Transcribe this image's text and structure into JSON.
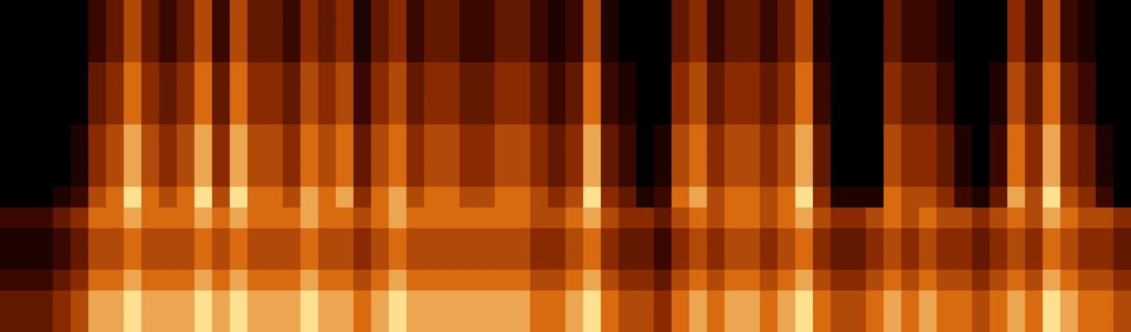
{
  "chart_data": {
    "type": "heatmap",
    "tick_labels": false,
    "grid": false,
    "color_range": [
      0,
      8
    ],
    "cells": [
      [
        0,
        0,
        0,
        0,
        0,
        2,
        3,
        5,
        3,
        2,
        3,
        5,
        2,
        5,
        3,
        3,
        2,
        4,
        3,
        4,
        1,
        3,
        4,
        2,
        3,
        3,
        2,
        2,
        3,
        3,
        2,
        1,
        2,
        5,
        1,
        0,
        0,
        0,
        3,
        4,
        2,
        3,
        3,
        2,
        3,
        5,
        1,
        0,
        0,
        0,
        3,
        2,
        2,
        1,
        0,
        0,
        0,
        4,
        2,
        5,
        2,
        1,
        0,
        0
      ],
      [
        0,
        0,
        0,
        0,
        0,
        2,
        3,
        5,
        3,
        2,
        3,
        5,
        2,
        5,
        3,
        3,
        2,
        4,
        3,
        4,
        1,
        3,
        4,
        2,
        3,
        3,
        2,
        2,
        3,
        3,
        2,
        1,
        2,
        5,
        1,
        0,
        0,
        0,
        3,
        4,
        2,
        3,
        3,
        2,
        3,
        5,
        1,
        0,
        0,
        0,
        3,
        2,
        2,
        1,
        0,
        0,
        0,
        4,
        2,
        5,
        2,
        1,
        0,
        0
      ],
      [
        0,
        0,
        0,
        0,
        0,
        2,
        3,
        5,
        3,
        2,
        3,
        5,
        2,
        5,
        3,
        3,
        2,
        4,
        3,
        4,
        1,
        3,
        4,
        2,
        3,
        3,
        2,
        2,
        3,
        3,
        2,
        1,
        2,
        5,
        1,
        0,
        0,
        0,
        3,
        4,
        2,
        3,
        3,
        2,
        3,
        5,
        1,
        0,
        0,
        0,
        3,
        2,
        2,
        1,
        0,
        0,
        0,
        4,
        2,
        5,
        2,
        1,
        0,
        0
      ],
      [
        0,
        0,
        0,
        0,
        0,
        3,
        4,
        6,
        4,
        3,
        4,
        6,
        3,
        6,
        4,
        4,
        3,
        5,
        4,
        5,
        2,
        4,
        5,
        3,
        4,
        4,
        3,
        3,
        4,
        4,
        3,
        2,
        3,
        6,
        2,
        1,
        0,
        0,
        4,
        5,
        3,
        4,
        4,
        3,
        4,
        6,
        2,
        0,
        0,
        0,
        4,
        3,
        3,
        2,
        0,
        0,
        1,
        5,
        3,
        6,
        3,
        2,
        0,
        0
      ],
      [
        0,
        0,
        0,
        0,
        0,
        3,
        4,
        6,
        4,
        3,
        4,
        6,
        3,
        6,
        4,
        4,
        3,
        5,
        4,
        5,
        2,
        4,
        5,
        3,
        4,
        4,
        3,
        3,
        4,
        4,
        3,
        2,
        3,
        6,
        2,
        1,
        0,
        0,
        4,
        5,
        3,
        4,
        4,
        3,
        4,
        6,
        2,
        0,
        0,
        0,
        4,
        3,
        3,
        2,
        0,
        0,
        1,
        5,
        3,
        6,
        3,
        2,
        0,
        0
      ],
      [
        0,
        0,
        0,
        0,
        0,
        3,
        4,
        6,
        4,
        3,
        4,
        6,
        3,
        6,
        4,
        4,
        3,
        5,
        4,
        5,
        2,
        4,
        5,
        3,
        4,
        4,
        3,
        3,
        4,
        4,
        3,
        2,
        3,
        6,
        2,
        1,
        0,
        0,
        4,
        5,
        3,
        4,
        4,
        3,
        4,
        6,
        2,
        0,
        0,
        0,
        4,
        3,
        3,
        2,
        0,
        0,
        1,
        5,
        3,
        6,
        3,
        2,
        0,
        0
      ],
      [
        0,
        0,
        0,
        0,
        1,
        4,
        5,
        7,
        5,
        4,
        5,
        7,
        4,
        7,
        5,
        5,
        4,
        6,
        5,
        6,
        3,
        5,
        6,
        4,
        5,
        5,
        4,
        4,
        5,
        5,
        4,
        3,
        4,
        7,
        3,
        2,
        0,
        1,
        5,
        6,
        4,
        5,
        5,
        4,
        5,
        7,
        3,
        0,
        0,
        0,
        5,
        4,
        4,
        3,
        1,
        0,
        2,
        6,
        4,
        7,
        4,
        3,
        1,
        0
      ],
      [
        0,
        0,
        0,
        0,
        1,
        4,
        5,
        7,
        5,
        4,
        5,
        7,
        4,
        7,
        5,
        5,
        4,
        6,
        5,
        6,
        3,
        5,
        6,
        4,
        5,
        5,
        4,
        4,
        5,
        5,
        4,
        3,
        4,
        7,
        3,
        2,
        0,
        1,
        5,
        6,
        4,
        5,
        5,
        4,
        5,
        7,
        3,
        0,
        0,
        0,
        5,
        4,
        4,
        3,
        1,
        0,
        2,
        6,
        4,
        7,
        4,
        3,
        1,
        0
      ],
      [
        0,
        0,
        0,
        0,
        1,
        4,
        5,
        7,
        5,
        4,
        5,
        7,
        4,
        7,
        5,
        5,
        4,
        6,
        5,
        6,
        3,
        5,
        6,
        4,
        5,
        5,
        4,
        4,
        5,
        5,
        4,
        3,
        4,
        7,
        3,
        2,
        0,
        1,
        5,
        6,
        4,
        5,
        5,
        4,
        5,
        7,
        3,
        0,
        0,
        0,
        5,
        4,
        4,
        3,
        1,
        0,
        2,
        6,
        4,
        7,
        4,
        3,
        1,
        0
      ],
      [
        0,
        0,
        0,
        1,
        2,
        5,
        6,
        8,
        6,
        5,
        6,
        8,
        5,
        8,
        6,
        6,
        5,
        7,
        6,
        7,
        4,
        6,
        7,
        5,
        6,
        6,
        5,
        5,
        6,
        6,
        5,
        4,
        5,
        8,
        4,
        3,
        1,
        2,
        6,
        7,
        5,
        6,
        6,
        5,
        6,
        8,
        4,
        1,
        1,
        1,
        6,
        5,
        5,
        4,
        2,
        1,
        3,
        7,
        5,
        8,
        5,
        4,
        2,
        0
      ],
      [
        2,
        2,
        2,
        3,
        4,
        6,
        6,
        7,
        6,
        6,
        6,
        7,
        6,
        7,
        6,
        6,
        6,
        7,
        6,
        6,
        5,
        6,
        7,
        6,
        6,
        6,
        6,
        6,
        6,
        6,
        5,
        5,
        6,
        7,
        5,
        4,
        4,
        3,
        5,
        6,
        5,
        6,
        6,
        5,
        6,
        7,
        5,
        4,
        4,
        5,
        6,
        5,
        6,
        5,
        5,
        4,
        5,
        6,
        5,
        7,
        6,
        5,
        5,
        4
      ],
      [
        1,
        1,
        1,
        2,
        3,
        5,
        5,
        6,
        5,
        5,
        5,
        6,
        5,
        6,
        5,
        5,
        5,
        6,
        5,
        5,
        4,
        5,
        6,
        5,
        5,
        5,
        5,
        5,
        5,
        5,
        4,
        4,
        5,
        6,
        4,
        3,
        3,
        2,
        4,
        5,
        4,
        5,
        5,
        4,
        5,
        6,
        4,
        3,
        3,
        4,
        5,
        4,
        5,
        4,
        4,
        3,
        4,
        5,
        4,
        6,
        5,
        4,
        4,
        3
      ],
      [
        1,
        1,
        1,
        2,
        3,
        5,
        5,
        6,
        5,
        5,
        5,
        6,
        5,
        6,
        5,
        5,
        5,
        6,
        5,
        5,
        4,
        5,
        6,
        5,
        5,
        5,
        5,
        5,
        5,
        5,
        4,
        4,
        5,
        6,
        4,
        3,
        3,
        2,
        4,
        5,
        4,
        5,
        5,
        4,
        5,
        6,
        4,
        3,
        3,
        4,
        5,
        4,
        5,
        4,
        4,
        3,
        4,
        5,
        4,
        6,
        5,
        4,
        4,
        3
      ],
      [
        2,
        2,
        2,
        3,
        4,
        6,
        6,
        7,
        6,
        6,
        6,
        7,
        6,
        7,
        6,
        6,
        6,
        7,
        6,
        6,
        5,
        6,
        7,
        6,
        6,
        6,
        6,
        6,
        6,
        6,
        5,
        5,
        6,
        7,
        5,
        4,
        4,
        3,
        5,
        6,
        5,
        6,
        6,
        5,
        6,
        7,
        5,
        4,
        4,
        5,
        6,
        5,
        6,
        5,
        5,
        4,
        5,
        6,
        5,
        7,
        6,
        5,
        5,
        4
      ],
      [
        3,
        3,
        3,
        4,
        5,
        7,
        7,
        8,
        7,
        7,
        7,
        8,
        7,
        8,
        7,
        7,
        7,
        8,
        7,
        7,
        6,
        7,
        8,
        7,
        7,
        7,
        7,
        7,
        7,
        7,
        6,
        6,
        7,
        8,
        6,
        5,
        5,
        4,
        6,
        7,
        6,
        7,
        7,
        6,
        7,
        8,
        6,
        5,
        5,
        6,
        7,
        6,
        7,
        6,
        6,
        5,
        6,
        7,
        6,
        8,
        7,
        6,
        6,
        5
      ],
      [
        3,
        3,
        3,
        4,
        5,
        7,
        7,
        8,
        7,
        7,
        7,
        8,
        7,
        8,
        7,
        7,
        7,
        8,
        7,
        7,
        6,
        7,
        8,
        7,
        7,
        7,
        7,
        7,
        7,
        7,
        6,
        6,
        7,
        8,
        6,
        5,
        5,
        4,
        6,
        7,
        6,
        7,
        7,
        6,
        7,
        8,
        6,
        5,
        5,
        6,
        7,
        6,
        7,
        6,
        6,
        5,
        6,
        7,
        6,
        8,
        7,
        6,
        6,
        5
      ]
    ]
  }
}
